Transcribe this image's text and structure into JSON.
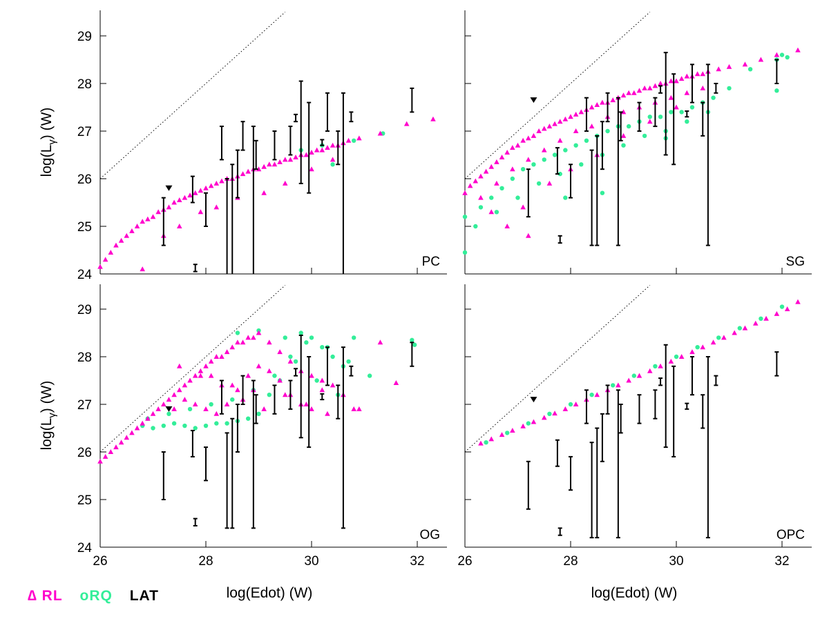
{
  "colors": {
    "rl": "#ff00cc",
    "rq": "#33ee99",
    "lat": "#000000",
    "axis": "#000000",
    "deathline": "#000000"
  },
  "legend": {
    "rl": "∆ RL",
    "rq": "oRQ",
    "lat": "LAT"
  },
  "chart_data": {
    "type": "scatter",
    "xlabel": "log(Edot) (W)",
    "ylabel": "log(Lγ) (W)",
    "ylabel_main": "log(L",
    "ylabel_sub": "γ",
    "ylabel_tail": ") (W)",
    "xlim": [
      26,
      32.6
    ],
    "ylim": [
      24,
      29.5
    ],
    "xticks": [
      26,
      28,
      30,
      32
    ],
    "yticks": [
      24,
      25,
      26,
      27,
      28,
      29
    ],
    "deathline": {
      "x": [
        26,
        29.5
      ],
      "y": [
        26,
        29.5
      ]
    },
    "upper_limit": {
      "x": 27.3,
      "y_by_panel": [
        25.8,
        27.65,
        26.9,
        27.1
      ]
    },
    "lat_points": [
      {
        "x": 27.2,
        "y": 25.0,
        "lo": 24.6,
        "hi": 25.6
      },
      {
        "x": 27.75,
        "y": 25.6,
        "lo": 25.5,
        "hi": 26.05
      },
      {
        "x": 27.8,
        "y": 24.1,
        "lo": 24.05,
        "hi": 24.2
      },
      {
        "x": 28.0,
        "y": 25.3,
        "lo": 25.0,
        "hi": 25.7
      },
      {
        "x": 28.3,
        "y": 26.6,
        "lo": 26.4,
        "hi": 27.1
      },
      {
        "x": 28.4,
        "y": 25.5,
        "lo": 24.0,
        "hi": 26.0
      },
      {
        "x": 28.5,
        "y": 25.5,
        "lo": 24.0,
        "hi": 26.3
      },
      {
        "x": 28.6,
        "y": 25.9,
        "lo": 25.6,
        "hi": 26.6
      },
      {
        "x": 28.7,
        "y": 26.8,
        "lo": 26.6,
        "hi": 27.2
      },
      {
        "x": 28.9,
        "y": 26.4,
        "lo": 24.0,
        "hi": 27.1
      },
      {
        "x": 28.95,
        "y": 26.5,
        "lo": 26.2,
        "hi": 26.8
      },
      {
        "x": 29.3,
        "y": 26.7,
        "lo": 26.4,
        "hi": 27.0
      },
      {
        "x": 29.6,
        "y": 26.9,
        "lo": 26.5,
        "hi": 27.1
      },
      {
        "x": 29.7,
        "y": 27.3,
        "lo": 27.2,
        "hi": 27.35
      },
      {
        "x": 29.8,
        "y": 26.9,
        "lo": 25.9,
        "hi": 28.05
      },
      {
        "x": 29.95,
        "y": 26.6,
        "lo": 25.7,
        "hi": 27.6
      },
      {
        "x": 30.2,
        "y": 26.75,
        "lo": 26.7,
        "hi": 26.82
      },
      {
        "x": 30.3,
        "y": 27.4,
        "lo": 27.0,
        "hi": 27.8
      },
      {
        "x": 30.5,
        "y": 26.6,
        "lo": 26.3,
        "hi": 27.0
      },
      {
        "x": 30.6,
        "y": 26.6,
        "lo": 24.0,
        "hi": 27.8
      },
      {
        "x": 30.75,
        "y": 27.3,
        "lo": 27.2,
        "hi": 27.4
      },
      {
        "x": 31.9,
        "y": 27.7,
        "lo": 27.4,
        "hi": 27.9
      }
    ],
    "panels": [
      {
        "label": "PC",
        "lat_y_offset": 0,
        "rl": {
          "x": [
            26.0,
            26.1,
            26.2,
            26.3,
            26.4,
            26.5,
            26.6,
            26.7,
            26.8,
            26.9,
            27.0,
            27.1,
            27.2,
            27.3,
            27.4,
            27.5,
            27.6,
            27.7,
            27.8,
            27.9,
            28.0,
            28.1,
            28.2,
            28.3,
            28.4,
            28.5,
            28.6,
            28.7,
            28.8,
            28.9,
            29.0,
            29.1,
            29.2,
            29.3,
            29.4,
            29.5,
            29.6,
            29.7,
            29.8,
            29.9,
            30.0,
            30.1,
            30.2,
            30.3,
            30.4,
            30.5,
            30.6,
            30.7,
            30.9,
            31.3,
            31.8,
            32.3,
            26.8,
            27.2,
            27.5,
            27.9,
            28.2,
            28.6,
            29.1,
            29.5,
            30.0,
            30.4
          ],
          "y": [
            24.15,
            24.3,
            24.45,
            24.6,
            24.7,
            24.8,
            24.9,
            25.0,
            25.1,
            25.15,
            25.2,
            25.3,
            25.35,
            25.4,
            25.5,
            25.55,
            25.6,
            25.65,
            25.7,
            25.75,
            25.8,
            25.85,
            25.9,
            25.95,
            26.0,
            26.0,
            26.05,
            26.1,
            26.15,
            26.2,
            26.2,
            26.25,
            26.3,
            26.3,
            26.35,
            26.4,
            26.4,
            26.45,
            26.5,
            26.5,
            26.55,
            26.6,
            26.6,
            26.65,
            26.7,
            26.7,
            26.75,
            26.8,
            26.85,
            26.95,
            27.15,
            27.25,
            24.1,
            24.8,
            25.0,
            25.3,
            25.4,
            25.6,
            25.7,
            25.9,
            26.2,
            26.4
          ]
        },
        "rq": {
          "x": [
            30.4,
            30.8,
            31.35,
            29.8,
            30.2
          ],
          "y": [
            26.3,
            26.8,
            26.95,
            26.6,
            26.7
          ]
        }
      },
      {
        "label": "SG",
        "lat_y_offset": 0.6,
        "rl": {
          "x": [
            26.0,
            26.1,
            26.2,
            26.3,
            26.4,
            26.5,
            26.6,
            26.7,
            26.8,
            26.9,
            27.0,
            27.1,
            27.2,
            27.3,
            27.4,
            27.5,
            27.6,
            27.7,
            27.8,
            27.9,
            28.0,
            28.1,
            28.2,
            28.3,
            28.4,
            28.5,
            28.6,
            28.7,
            28.8,
            28.9,
            29.0,
            29.1,
            29.2,
            29.3,
            29.4,
            29.5,
            29.6,
            29.7,
            29.8,
            29.9,
            30.0,
            30.1,
            30.2,
            30.3,
            30.4,
            30.5,
            30.6,
            30.8,
            31.0,
            31.3,
            31.6,
            31.9,
            32.3,
            26.3,
            26.6,
            26.9,
            27.2,
            27.5,
            27.8,
            28.1,
            28.4,
            28.7,
            29.0,
            29.3,
            29.6,
            29.9,
            30.2,
            30.5,
            26.8,
            27.1,
            27.6,
            28.0,
            28.5,
            29.0,
            29.5,
            30.0,
            27.2,
            26.5
          ],
          "y": [
            25.7,
            25.85,
            25.95,
            26.05,
            26.15,
            26.25,
            26.35,
            26.45,
            26.55,
            26.65,
            26.7,
            26.8,
            26.85,
            26.9,
            27.0,
            27.05,
            27.1,
            27.15,
            27.2,
            27.25,
            27.3,
            27.35,
            27.4,
            27.45,
            27.5,
            27.55,
            27.6,
            27.6,
            27.65,
            27.7,
            27.75,
            27.8,
            27.8,
            27.85,
            27.9,
            27.9,
            27.95,
            28.0,
            28.0,
            28.05,
            28.05,
            28.1,
            28.15,
            28.15,
            28.2,
            28.2,
            28.25,
            28.3,
            28.35,
            28.4,
            28.5,
            28.6,
            28.7,
            25.6,
            25.9,
            26.2,
            26.4,
            26.6,
            26.8,
            27.0,
            27.1,
            27.3,
            27.4,
            27.5,
            27.6,
            27.7,
            27.8,
            27.9,
            25.0,
            25.4,
            25.9,
            26.2,
            26.5,
            26.9,
            27.2,
            27.5,
            24.8,
            25.3
          ]
        },
        "rq": {
          "x": [
            26.0,
            26.3,
            26.5,
            26.7,
            26.9,
            27.1,
            27.3,
            27.5,
            27.7,
            27.9,
            28.1,
            28.3,
            28.5,
            28.7,
            28.9,
            29.1,
            29.3,
            29.5,
            29.7,
            29.9,
            30.1,
            30.3,
            30.5,
            30.7,
            31.0,
            31.4,
            31.9,
            32.0,
            32.1,
            26.2,
            26.6,
            27.0,
            27.4,
            27.8,
            28.2,
            28.6,
            29.0,
            29.4,
            29.8,
            30.2,
            30.6,
            27.9,
            28.6,
            26.0,
            29.8,
            31.9
          ],
          "y": [
            25.2,
            25.4,
            25.6,
            25.8,
            26.0,
            26.2,
            26.3,
            26.4,
            26.5,
            26.6,
            26.7,
            26.8,
            26.9,
            27.0,
            27.1,
            27.1,
            27.2,
            27.3,
            27.3,
            27.4,
            27.4,
            27.5,
            27.6,
            27.7,
            27.9,
            28.3,
            28.5,
            28.6,
            28.55,
            25.0,
            25.3,
            25.6,
            25.9,
            26.1,
            26.3,
            26.5,
            26.7,
            26.9,
            27.0,
            27.2,
            27.4,
            25.6,
            25.7,
            24.45,
            26.85,
            27.85
          ]
        }
      },
      {
        "label": "OG",
        "lat_y_offset": 0.4,
        "rl": {
          "x": [
            26.0,
            26.1,
            26.2,
            26.3,
            26.4,
            26.5,
            26.6,
            26.7,
            26.8,
            26.9,
            27.0,
            27.1,
            27.2,
            27.3,
            27.4,
            27.5,
            27.6,
            27.7,
            27.8,
            27.9,
            28.0,
            28.1,
            28.2,
            28.3,
            28.4,
            28.5,
            28.6,
            28.7,
            28.8,
            28.9,
            29.0,
            29.2,
            29.4,
            29.6,
            29.8,
            30.0,
            30.2,
            30.4,
            30.6,
            30.9,
            31.3,
            31.6,
            27.4,
            27.6,
            27.8,
            28.0,
            28.2,
            28.4,
            28.6,
            28.8,
            29.0,
            29.2,
            29.4,
            29.6,
            29.8,
            30.0,
            30.2,
            27.5,
            27.9,
            28.3,
            28.7,
            29.1,
            29.5,
            29.9,
            30.3,
            30.8,
            28.1,
            28.5,
            28.9
          ],
          "y": [
            25.8,
            25.9,
            26.0,
            26.1,
            26.2,
            26.3,
            26.4,
            26.5,
            26.6,
            26.7,
            26.8,
            26.9,
            27.0,
            27.1,
            27.2,
            27.3,
            27.4,
            27.5,
            27.6,
            27.7,
            27.8,
            27.9,
            28.0,
            28.0,
            28.1,
            28.2,
            28.3,
            28.3,
            28.4,
            28.4,
            28.5,
            28.3,
            28.1,
            27.9,
            27.7,
            27.6,
            27.5,
            27.4,
            27.2,
            26.9,
            28.3,
            27.45,
            26.9,
            27.1,
            27.0,
            26.9,
            26.8,
            27.0,
            27.3,
            27.6,
            27.8,
            27.7,
            27.5,
            27.2,
            27.0,
            26.9,
            27.3,
            27.8,
            27.6,
            27.4,
            27.1,
            26.9,
            27.2,
            27.0,
            26.8,
            26.9,
            27.6,
            27.4,
            27.3
          ]
        },
        "rq": {
          "x": [
            26.8,
            27.0,
            27.2,
            27.4,
            27.6,
            27.8,
            28.0,
            28.2,
            28.4,
            28.6,
            28.8,
            29.0,
            29.2,
            29.4,
            29.6,
            29.8,
            30.0,
            30.2,
            30.4,
            30.6,
            30.8,
            31.1,
            31.9,
            26.9,
            27.3,
            27.7,
            28.1,
            28.5,
            28.9,
            29.3,
            29.7,
            30.1,
            30.5,
            28.6,
            29.0,
            29.5,
            29.9,
            30.3,
            30.7,
            31.95
          ],
          "y": [
            26.55,
            26.5,
            26.55,
            26.6,
            26.55,
            26.5,
            26.55,
            26.6,
            26.6,
            26.65,
            26.7,
            26.8,
            27.2,
            27.5,
            28.0,
            28.5,
            28.4,
            28.2,
            28.0,
            27.8,
            28.4,
            27.6,
            28.35,
            26.7,
            26.8,
            26.9,
            27.0,
            27.1,
            27.3,
            27.6,
            27.9,
            27.5,
            27.2,
            28.5,
            28.55,
            28.4,
            28.3,
            28.2,
            27.9,
            28.25
          ]
        }
      },
      {
        "label": "OPC",
        "lat_y_offset": 0.2,
        "rl": {
          "x": [
            26.3,
            26.5,
            26.7,
            26.9,
            27.1,
            27.3,
            27.5,
            27.7,
            27.9,
            28.1,
            28.3,
            28.5,
            28.7,
            28.9,
            29.1,
            29.3,
            29.5,
            29.7,
            29.9,
            30.1,
            30.3,
            30.5,
            30.7,
            30.9,
            31.1,
            31.3,
            31.5,
            31.7,
            31.9,
            32.1,
            32.3
          ],
          "y": [
            26.18,
            26.27,
            26.36,
            26.45,
            26.54,
            26.63,
            26.72,
            26.81,
            26.9,
            27.0,
            27.1,
            27.2,
            27.3,
            27.4,
            27.5,
            27.6,
            27.7,
            27.8,
            27.9,
            28.0,
            28.1,
            28.2,
            28.3,
            28.4,
            28.5,
            28.6,
            28.7,
            28.8,
            28.9,
            29.0,
            29.15
          ]
        },
        "rq": {
          "x": [
            26.4,
            26.8,
            27.2,
            27.6,
            28.0,
            28.4,
            28.8,
            29.2,
            29.6,
            30.0,
            30.4,
            30.8,
            31.2,
            31.6,
            32.0
          ],
          "y": [
            26.2,
            26.4,
            26.6,
            26.8,
            27.0,
            27.2,
            27.4,
            27.6,
            27.8,
            28.0,
            28.2,
            28.4,
            28.6,
            28.8,
            29.05
          ]
        }
      }
    ]
  }
}
